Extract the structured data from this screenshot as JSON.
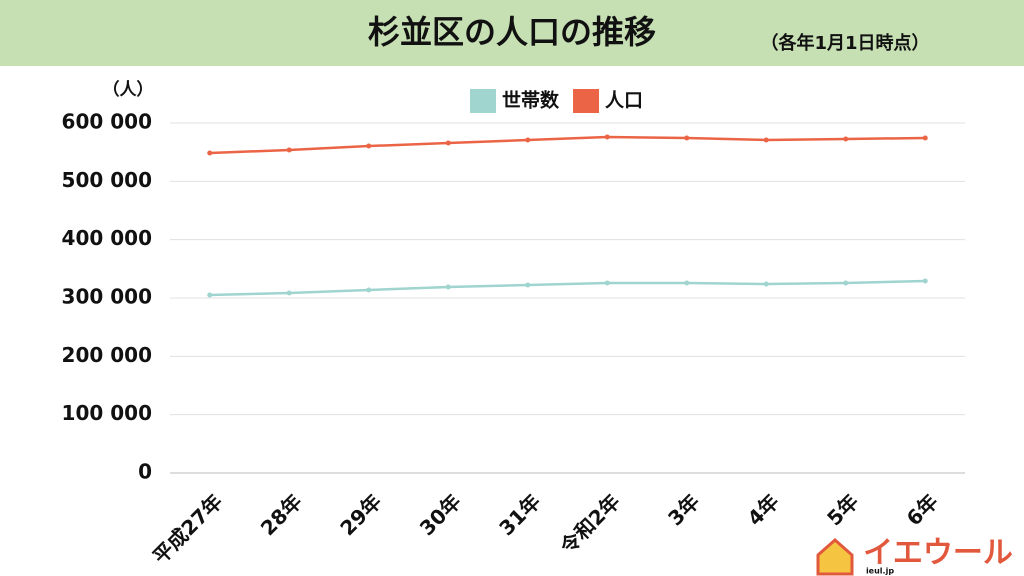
{
  "chart_data": {
    "type": "line",
    "title": "杉並区の人口の推移",
    "subtitle": "（各年1月1日時点）",
    "y_label": "（人）",
    "categories": [
      "平成27年",
      "28年",
      "29年",
      "30年",
      "31年",
      "令和2年",
      "3年",
      "4年",
      "5年",
      "6年"
    ],
    "series": [
      {
        "name": "世帯数",
        "color": "#9fd4cf",
        "values": [
          305100,
          308600,
          313700,
          318900,
          322300,
          325700,
          325700,
          324000,
          325700,
          329100
        ]
      },
      {
        "name": "人口",
        "color": "#ec6446",
        "values": [
          548600,
          553700,
          560500,
          565700,
          570900,
          576000,
          574300,
          570900,
          572600,
          574300
        ]
      }
    ],
    "ylim": [
      0,
      600000
    ],
    "yticks": [
      0,
      {
        "value": 100000,
        "label": "100 000"
      },
      {
        "value": 200000,
        "label": "200 000"
      },
      {
        "value": 300000,
        "label": "300 000"
      },
      {
        "value": 400000,
        "label": "400 000"
      },
      {
        "value": 500000,
        "label": "500 000"
      },
      {
        "value": 600000,
        "label": "600 000"
      }
    ],
    "grid": true,
    "legend": "top"
  },
  "logo": {
    "name": "イエウール",
    "url": "ieul.jp"
  }
}
